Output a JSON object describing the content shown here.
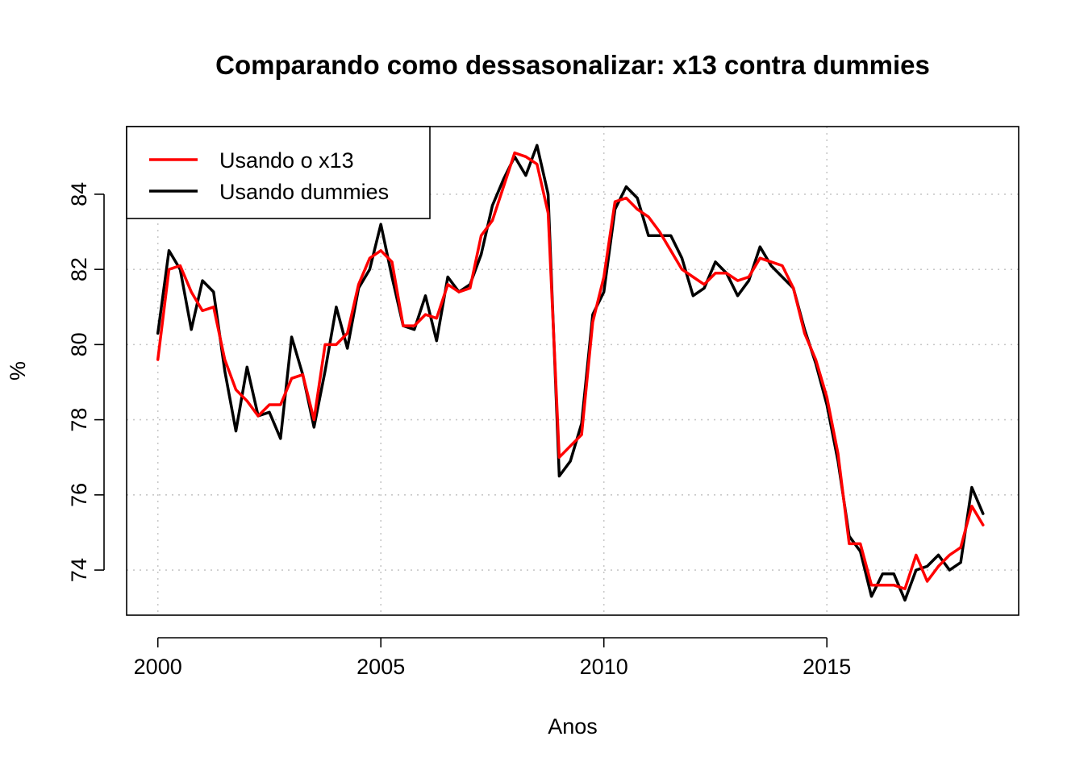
{
  "chart_data": {
    "type": "line",
    "title": "Comparando como dessasonalizar: x13 contra dummies",
    "xlabel": "Anos",
    "ylabel": "%",
    "xlim": [
      1999.3,
      2019.3
    ],
    "ylim": [
      72.8,
      85.8
    ],
    "x_ticks": [
      2000,
      2005,
      2010,
      2015
    ],
    "y_ticks": [
      74,
      76,
      78,
      80,
      82,
      84
    ],
    "grid": true,
    "legend_position": "top-left",
    "series": [
      {
        "name": "Usando o x13",
        "color": "#ff0000",
        "x": [
          2000.0,
          2000.25,
          2000.5,
          2000.75,
          2001.0,
          2001.25,
          2001.5,
          2001.75,
          2002.0,
          2002.25,
          2002.5,
          2002.75,
          2003.0,
          2003.25,
          2003.5,
          2003.75,
          2004.0,
          2004.25,
          2004.5,
          2004.75,
          2005.0,
          2005.25,
          2005.5,
          2005.75,
          2006.0,
          2006.25,
          2006.5,
          2006.75,
          2007.0,
          2007.25,
          2007.5,
          2007.75,
          2008.0,
          2008.25,
          2008.5,
          2008.75,
          2009.0,
          2009.25,
          2009.5,
          2009.75,
          2010.0,
          2010.25,
          2010.5,
          2010.75,
          2011.0,
          2011.25,
          2011.5,
          2011.75,
          2012.0,
          2012.25,
          2012.5,
          2012.75,
          2013.0,
          2013.25,
          2013.5,
          2013.75,
          2014.0,
          2014.25,
          2014.5,
          2014.75,
          2015.0,
          2015.25,
          2015.5,
          2015.75,
          2016.0,
          2016.25,
          2016.5,
          2016.75,
          2017.0,
          2017.25,
          2017.5,
          2017.75,
          2018.0,
          2018.25,
          2018.5
        ],
        "values": [
          79.6,
          82.0,
          82.1,
          81.4,
          80.9,
          81.0,
          79.6,
          78.8,
          78.5,
          78.1,
          78.4,
          78.4,
          79.1,
          79.2,
          78.0,
          80.0,
          80.0,
          80.3,
          81.6,
          82.3,
          82.5,
          82.2,
          80.5,
          80.5,
          80.8,
          80.7,
          81.6,
          81.4,
          81.5,
          82.9,
          83.3,
          84.2,
          85.1,
          85.0,
          84.8,
          83.5,
          77.0,
          77.3,
          77.6,
          80.6,
          81.8,
          83.8,
          83.9,
          83.6,
          83.4,
          83.0,
          82.5,
          82.0,
          81.8,
          81.6,
          81.9,
          81.9,
          81.7,
          81.8,
          82.3,
          82.2,
          82.1,
          81.5,
          80.3,
          79.6,
          78.6,
          77.1,
          74.7,
          74.7,
          73.6,
          73.6,
          73.6,
          73.5,
          74.4,
          73.7,
          74.1,
          74.4,
          74.6,
          75.7,
          75.2
        ]
      },
      {
        "name": "Usando dummies",
        "color": "#000000",
        "x": [
          2000.0,
          2000.25,
          2000.5,
          2000.75,
          2001.0,
          2001.25,
          2001.5,
          2001.75,
          2002.0,
          2002.25,
          2002.5,
          2002.75,
          2003.0,
          2003.25,
          2003.5,
          2003.75,
          2004.0,
          2004.25,
          2004.5,
          2004.75,
          2005.0,
          2005.25,
          2005.5,
          2005.75,
          2006.0,
          2006.25,
          2006.5,
          2006.75,
          2007.0,
          2007.25,
          2007.5,
          2007.75,
          2008.0,
          2008.25,
          2008.5,
          2008.75,
          2009.0,
          2009.25,
          2009.5,
          2009.75,
          2010.0,
          2010.25,
          2010.5,
          2010.75,
          2011.0,
          2011.25,
          2011.5,
          2011.75,
          2012.0,
          2012.25,
          2012.5,
          2012.75,
          2013.0,
          2013.25,
          2013.5,
          2013.75,
          2014.0,
          2014.25,
          2014.5,
          2014.75,
          2015.0,
          2015.25,
          2015.5,
          2015.75,
          2016.0,
          2016.25,
          2016.5,
          2016.75,
          2017.0,
          2017.25,
          2017.5,
          2017.75,
          2018.0,
          2018.25,
          2018.5
        ],
        "values": [
          80.3,
          82.5,
          82.0,
          80.4,
          81.7,
          81.4,
          79.3,
          77.7,
          79.4,
          78.1,
          78.2,
          77.5,
          80.2,
          79.2,
          77.8,
          79.3,
          81.0,
          79.9,
          81.5,
          82.0,
          83.2,
          81.8,
          80.5,
          80.4,
          81.3,
          80.1,
          81.8,
          81.4,
          81.6,
          82.4,
          83.7,
          84.4,
          85.0,
          84.5,
          85.3,
          84.0,
          76.5,
          76.9,
          77.9,
          80.8,
          81.4,
          83.6,
          84.2,
          83.9,
          82.9,
          82.9,
          82.9,
          82.3,
          81.3,
          81.5,
          82.2,
          81.9,
          81.3,
          81.7,
          82.6,
          82.1,
          81.8,
          81.5,
          80.4,
          79.5,
          78.4,
          76.9,
          74.9,
          74.5,
          73.3,
          73.9,
          73.9,
          73.2,
          74.0,
          74.1,
          74.4,
          74.0,
          74.2,
          76.2,
          75.5
        ]
      }
    ]
  }
}
